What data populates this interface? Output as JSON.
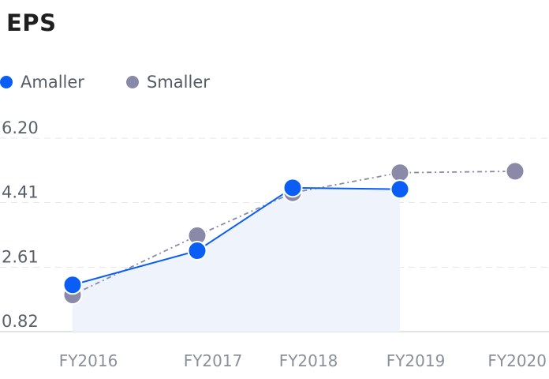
{
  "chart_data": {
    "type": "line",
    "title": "EPS",
    "categories": [
      "FY2016",
      "FY2017",
      "FY2018",
      "FY2019",
      "FY2020"
    ],
    "y_ticks": [
      "6.20",
      "4.41",
      "2.61",
      "0.82"
    ],
    "ylim": [
      0.82,
      6.2
    ],
    "grid": true,
    "legend_position": "top-left",
    "series": [
      {
        "name": "Amaller",
        "values": [
          2.12,
          3.07,
          4.82,
          4.78,
          null
        ],
        "color": "#0a5ef5",
        "style": "solid",
        "area": true
      },
      {
        "name": "Smaller",
        "values": [
          1.84,
          3.49,
          4.68,
          5.24,
          5.28
        ],
        "color": "#8a8aa8",
        "style": "dash-dot",
        "area": false
      }
    ]
  }
}
